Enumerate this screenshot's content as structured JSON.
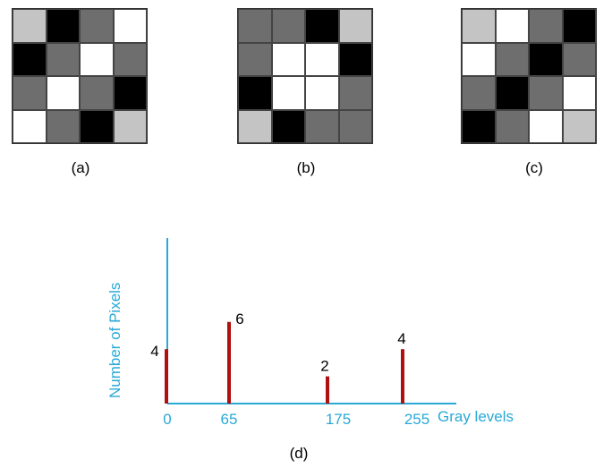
{
  "palette": {
    "0": "#000000",
    "65": "#6e6e6e",
    "175": "#c4c4c4",
    "255": "#ffffff"
  },
  "grids": [
    {
      "label": "(a)",
      "cells": [
        [
          175,
          0,
          65,
          255
        ],
        [
          0,
          65,
          255,
          65
        ],
        [
          65,
          255,
          65,
          0
        ],
        [
          255,
          65,
          0,
          175
        ]
      ]
    },
    {
      "label": "(b)",
      "cells": [
        [
          65,
          65,
          0,
          175
        ],
        [
          65,
          255,
          255,
          0
        ],
        [
          0,
          255,
          255,
          65
        ],
        [
          175,
          0,
          65,
          65
        ]
      ]
    },
    {
      "label": "(c)",
      "cells": [
        [
          175,
          255,
          65,
          0
        ],
        [
          255,
          65,
          0,
          65
        ],
        [
          65,
          0,
          65,
          255
        ],
        [
          0,
          65,
          255,
          175
        ]
      ]
    }
  ],
  "histogram": {
    "label": "(d)",
    "ylabel": "Number of Pixels",
    "xlabel": "Gray levels",
    "axis_color": "#29a9d6",
    "bar_color": "#b01010"
  },
  "chart_data": {
    "type": "bar",
    "categories": [
      "0",
      "65",
      "175",
      "255"
    ],
    "values": [
      4,
      6,
      2,
      4
    ],
    "xlabel": "Gray levels",
    "ylabel": "Number of Pixels",
    "ylim": [
      0,
      10
    ]
  }
}
